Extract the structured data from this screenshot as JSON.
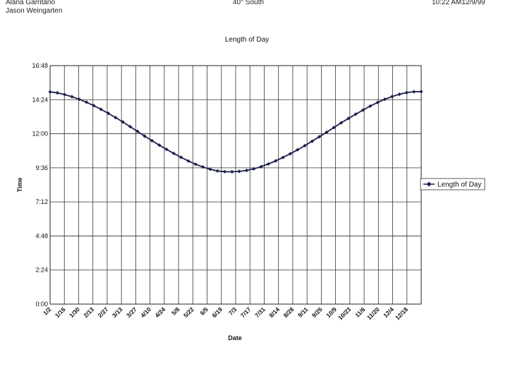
{
  "header": {
    "names": [
      "Alana Garritano",
      "Jason Weingarten"
    ],
    "location": "40° South",
    "timestamp": "10:22 AM12/9/99"
  },
  "chart_data": {
    "type": "line",
    "title": "Length of Day",
    "xlabel": "Date",
    "ylabel": "Time",
    "y_unit": "hours",
    "ylim": [
      0,
      16.8
    ],
    "y_ticks": [
      "0:00",
      "2:24",
      "4:48",
      "7:12",
      "9:36",
      "12:00",
      "14:24",
      "16:48"
    ],
    "x_ticks": [
      "1/2",
      "1/16",
      "1/30",
      "2/13",
      "2/27",
      "3/13",
      "3/27",
      "4/10",
      "4/24",
      "5/8",
      "5/22",
      "6/5",
      "6/19",
      "7/3",
      "7/17",
      "7/31",
      "8/14",
      "8/28",
      "9/11",
      "9/25",
      "10/9",
      "10/23",
      "11/6",
      "11/20",
      "12/4",
      "12/18"
    ],
    "grid": true,
    "legend_position": "right",
    "series": [
      {
        "name": "Length of Day",
        "marker": "diamond",
        "color": "#1a1f4a",
        "x": [
          "1/2",
          "1/9",
          "1/16",
          "1/23",
          "1/30",
          "2/6",
          "2/13",
          "2/20",
          "2/27",
          "3/6",
          "3/13",
          "3/20",
          "3/27",
          "4/3",
          "4/10",
          "4/17",
          "4/24",
          "5/1",
          "5/8",
          "5/15",
          "5/22",
          "5/29",
          "6/5",
          "6/12",
          "6/19",
          "6/26",
          "7/3",
          "7/10",
          "7/17",
          "7/24",
          "7/31",
          "8/7",
          "8/14",
          "8/21",
          "8/28",
          "9/4",
          "9/11",
          "9/18",
          "9/25",
          "10/2",
          "10/9",
          "10/16",
          "10/23",
          "10/30",
          "11/6",
          "11/13",
          "11/20",
          "11/27",
          "12/4",
          "12/11",
          "12/18",
          "12/25"
        ],
        "values": [
          14.95,
          14.88,
          14.76,
          14.61,
          14.43,
          14.22,
          13.98,
          13.72,
          13.44,
          13.14,
          12.83,
          12.5,
          12.17,
          11.83,
          11.51,
          11.2,
          10.9,
          10.61,
          10.34,
          10.08,
          9.85,
          9.66,
          9.5,
          9.38,
          9.33,
          9.32,
          9.35,
          9.42,
          9.53,
          9.68,
          9.87,
          10.09,
          10.33,
          10.59,
          10.87,
          11.16,
          11.47,
          11.79,
          12.11,
          12.44,
          12.77,
          13.08,
          13.38,
          13.67,
          13.95,
          14.2,
          14.43,
          14.62,
          14.78,
          14.9,
          14.96,
          14.97
        ]
      }
    ]
  }
}
